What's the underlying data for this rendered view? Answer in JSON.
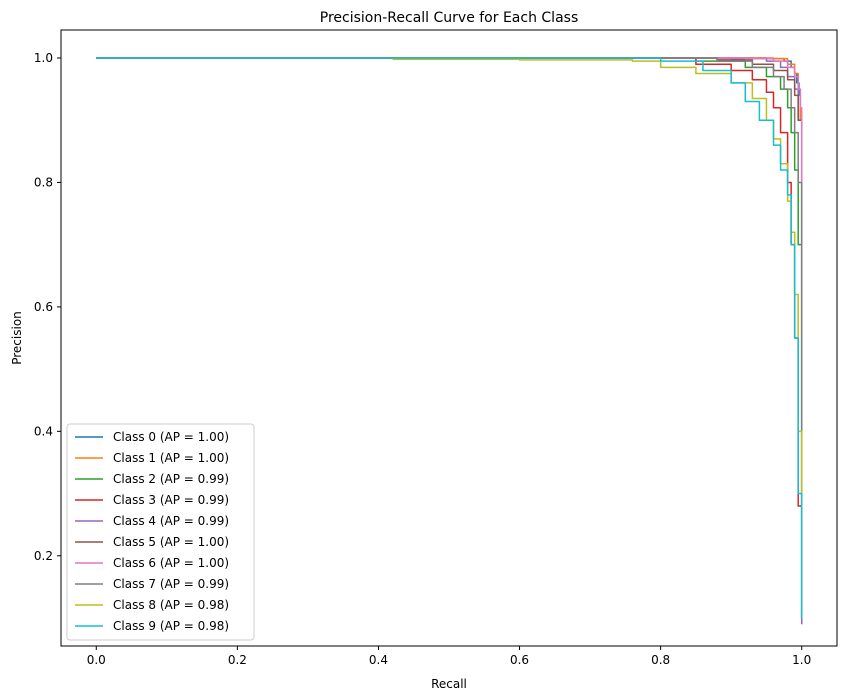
{
  "chart_data": {
    "type": "line",
    "title": "Precision-Recall Curve for Each Class",
    "xlabel": "Recall",
    "ylabel": "Precision",
    "xlim": [
      -0.05,
      1.05
    ],
    "ylim": [
      0.055,
      1.045
    ],
    "xticks": [
      0.0,
      0.2,
      0.4,
      0.6,
      0.8,
      1.0
    ],
    "xtick_labels": [
      "0.0",
      "0.2",
      "0.4",
      "0.6",
      "0.8",
      "1.0"
    ],
    "yticks": [
      0.2,
      0.4,
      0.6,
      0.8,
      1.0
    ],
    "ytick_labels": [
      "0.2",
      "0.4",
      "0.6",
      "0.8",
      "1.0"
    ],
    "grid": false,
    "legend_position": "lower-left",
    "series": [
      {
        "name": "Class 0 (AP = 1.00)",
        "color": "#1f77b4",
        "x": [
          0.0,
          0.8,
          0.95,
          0.975,
          0.985,
          0.99,
          0.993,
          0.996,
          0.998,
          1.0,
          1.0,
          1.0
        ],
        "y": [
          1.0,
          1.0,
          0.999,
          0.995,
          0.985,
          0.975,
          0.96,
          0.94,
          0.9,
          0.85,
          0.5,
          0.1
        ]
      },
      {
        "name": "Class 1 (AP = 1.00)",
        "color": "#ff7f0e",
        "x": [
          0.0,
          0.8,
          0.96,
          0.98,
          0.99,
          0.995,
          0.998,
          1.0,
          1.0,
          1.0
        ],
        "y": [
          1.0,
          1.0,
          0.999,
          0.99,
          0.975,
          0.95,
          0.9,
          0.8,
          0.4,
          0.1
        ]
      },
      {
        "name": "Class 2 (AP = 0.99)",
        "color": "#2ca02c",
        "x": [
          0.0,
          0.7,
          0.85,
          0.92,
          0.95,
          0.97,
          0.98,
          0.985,
          0.99,
          0.995,
          1.0,
          1.0
        ],
        "y": [
          1.0,
          1.0,
          0.995,
          0.985,
          0.97,
          0.95,
          0.92,
          0.88,
          0.82,
          0.7,
          0.4,
          0.1
        ]
      },
      {
        "name": "Class 3 (AP = 0.99)",
        "color": "#d62728",
        "x": [
          0.0,
          0.7,
          0.85,
          0.9,
          0.93,
          0.95,
          0.96,
          0.97,
          0.98,
          0.985,
          0.99,
          0.995,
          1.0
        ],
        "y": [
          1.0,
          1.0,
          0.99,
          0.98,
          0.965,
          0.945,
          0.92,
          0.88,
          0.8,
          0.7,
          0.55,
          0.28,
          0.1
        ]
      },
      {
        "name": "Class 4 (AP = 0.99)",
        "color": "#9467bd",
        "x": [
          0.0,
          0.75,
          0.9,
          0.95,
          0.97,
          0.98,
          0.99,
          0.995,
          1.0,
          1.0,
          1.0
        ],
        "y": [
          1.0,
          1.0,
          0.999,
          0.995,
          0.985,
          0.97,
          0.95,
          0.9,
          0.75,
          0.4,
          0.09
        ]
      },
      {
        "name": "Class 5 (AP = 1.00)",
        "color": "#8c564b",
        "x": [
          0.0,
          0.75,
          0.88,
          0.93,
          0.96,
          0.98,
          0.99,
          0.995,
          1.0,
          1.0,
          1.0
        ],
        "y": [
          1.0,
          1.0,
          0.997,
          0.99,
          0.98,
          0.965,
          0.94,
          0.9,
          0.75,
          0.45,
          0.1
        ]
      },
      {
        "name": "Class 6 (AP = 1.00)",
        "color": "#e377c2",
        "x": [
          0.0,
          0.8,
          0.92,
          0.96,
          0.98,
          0.99,
          0.995,
          0.998,
          1.0,
          1.0,
          1.0
        ],
        "y": [
          1.0,
          1.0,
          0.999,
          0.995,
          0.985,
          0.97,
          0.95,
          0.92,
          0.85,
          0.5,
          0.1
        ]
      },
      {
        "name": "Class 7 (AP = 0.99)",
        "color": "#7f7f7f",
        "x": [
          0.0,
          0.75,
          0.88,
          0.93,
          0.96,
          0.975,
          0.985,
          0.99,
          0.995,
          1.0,
          1.0
        ],
        "y": [
          1.0,
          1.0,
          0.995,
          0.985,
          0.97,
          0.95,
          0.92,
          0.88,
          0.8,
          0.6,
          0.1
        ]
      },
      {
        "name": "Class 8 (AP = 0.98)",
        "color": "#bcbd22",
        "x": [
          0.42,
          0.6,
          0.76,
          0.8,
          0.85,
          0.9,
          0.93,
          0.95,
          0.96,
          0.97,
          0.98,
          0.985,
          0.99,
          0.995,
          1.0
        ],
        "y": [
          0.998,
          0.997,
          0.995,
          0.985,
          0.975,
          0.96,
          0.935,
          0.9,
          0.87,
          0.83,
          0.77,
          0.72,
          0.62,
          0.4,
          0.1
        ]
      },
      {
        "name": "Class 9 (AP = 0.98)",
        "color": "#17becf",
        "x": [
          0.0,
          0.7,
          0.8,
          0.86,
          0.9,
          0.92,
          0.94,
          0.96,
          0.97,
          0.98,
          0.985,
          0.99,
          0.995,
          1.0
        ],
        "y": [
          1.0,
          1.0,
          0.995,
          0.98,
          0.96,
          0.93,
          0.9,
          0.86,
          0.82,
          0.78,
          0.7,
          0.55,
          0.3,
          0.1
        ]
      }
    ]
  }
}
